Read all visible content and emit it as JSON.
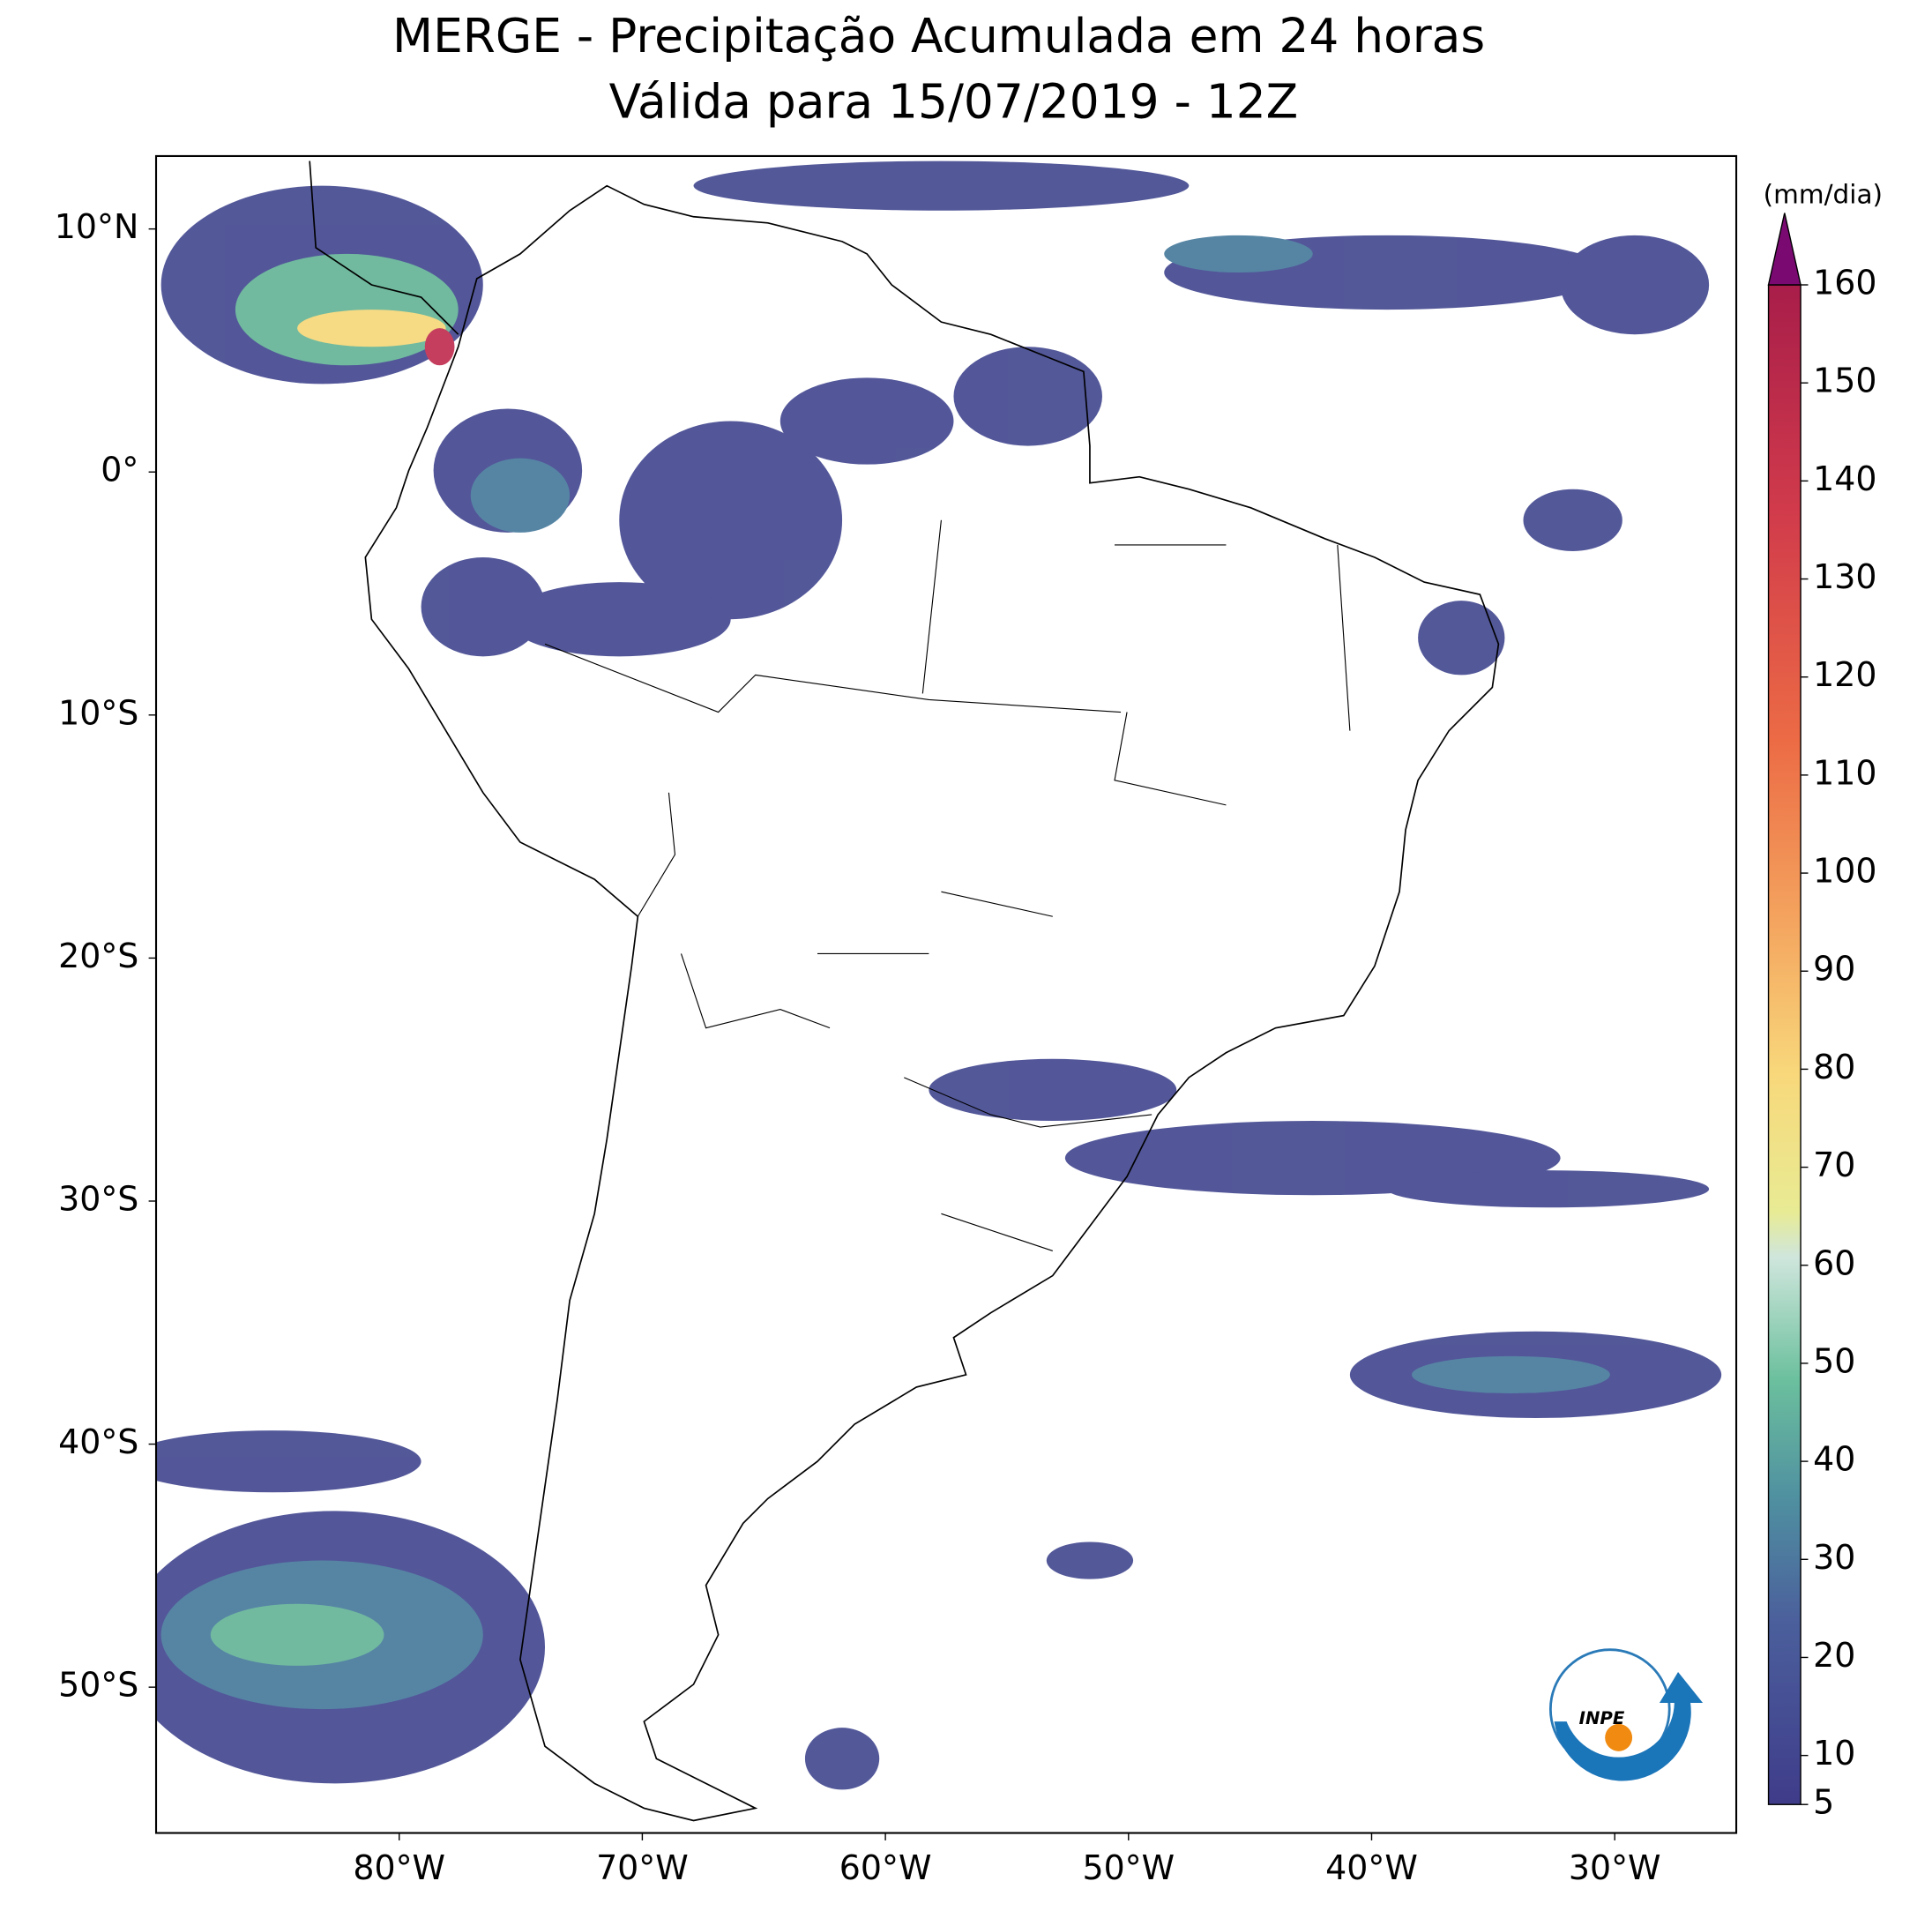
{
  "title": [
    "MERGE - Precipitação Acumulada em 24 horas",
    "Válida para 15/07/2019 - 12Z"
  ],
  "map": {
    "lon_range": [
      -90,
      -25
    ],
    "lat_range": [
      -56,
      13
    ],
    "lon_ticks": [
      {
        "value": -80,
        "label": "80°W"
      },
      {
        "value": -70,
        "label": "70°W"
      },
      {
        "value": -60,
        "label": "60°W"
      },
      {
        "value": -50,
        "label": "50°W"
      },
      {
        "value": -40,
        "label": "40°W"
      },
      {
        "value": -30,
        "label": "30°W"
      }
    ],
    "lat_ticks": [
      {
        "value": 10,
        "label": "10°N"
      },
      {
        "value": 0,
        "label": "0°"
      },
      {
        "value": -10,
        "label": "10°S"
      },
      {
        "value": -20,
        "label": "20°S"
      },
      {
        "value": -30,
        "label": "30°S"
      },
      {
        "value": -40,
        "label": "40°S"
      },
      {
        "value": -50,
        "label": "50°S"
      }
    ]
  },
  "colorbar": {
    "unit": "(mm/dia)",
    "range": [
      5,
      160
    ],
    "ticks": [
      5,
      10,
      20,
      30,
      40,
      50,
      60,
      70,
      80,
      90,
      100,
      110,
      120,
      130,
      140,
      150,
      160
    ]
  }
}
